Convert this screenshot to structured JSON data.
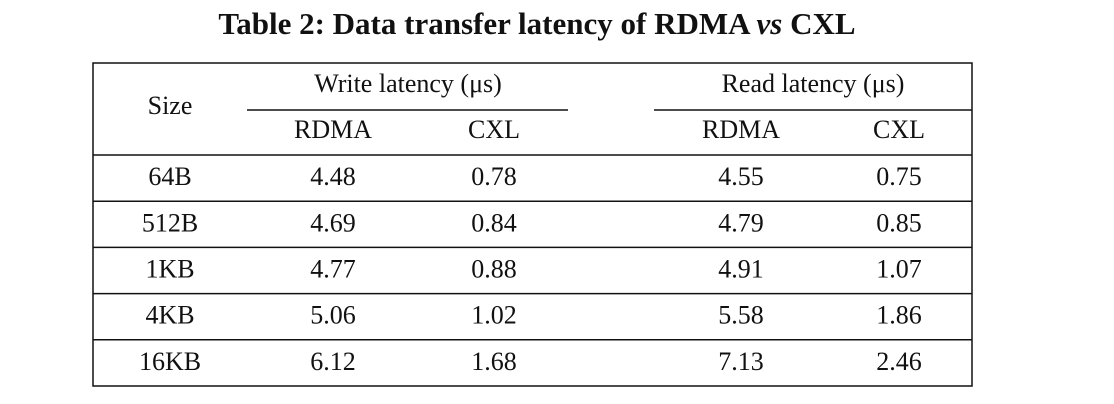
{
  "caption": {
    "label": "Table 2: Data transfer latency of RDMA",
    "emphasis": "vs",
    "tail": "CXL"
  },
  "table": {
    "size_header": "Size",
    "groups": [
      {
        "title": "Write latency (μs)",
        "columns": [
          "RDMA",
          "CXL"
        ]
      },
      {
        "title": "Read latency (μs)",
        "columns": [
          "RDMA",
          "CXL"
        ]
      }
    ],
    "rows": [
      [
        "64B",
        "4.48",
        "0.78",
        "4.55",
        "0.75"
      ],
      [
        "512B",
        "4.69",
        "0.84",
        "4.79",
        "0.85"
      ],
      [
        "1KB",
        "4.77",
        "0.88",
        "4.91",
        "1.07"
      ],
      [
        "4KB",
        "5.06",
        "1.02",
        "5.58",
        "1.86"
      ],
      [
        "16KB",
        "6.12",
        "1.68",
        "7.13",
        "2.46"
      ]
    ]
  }
}
